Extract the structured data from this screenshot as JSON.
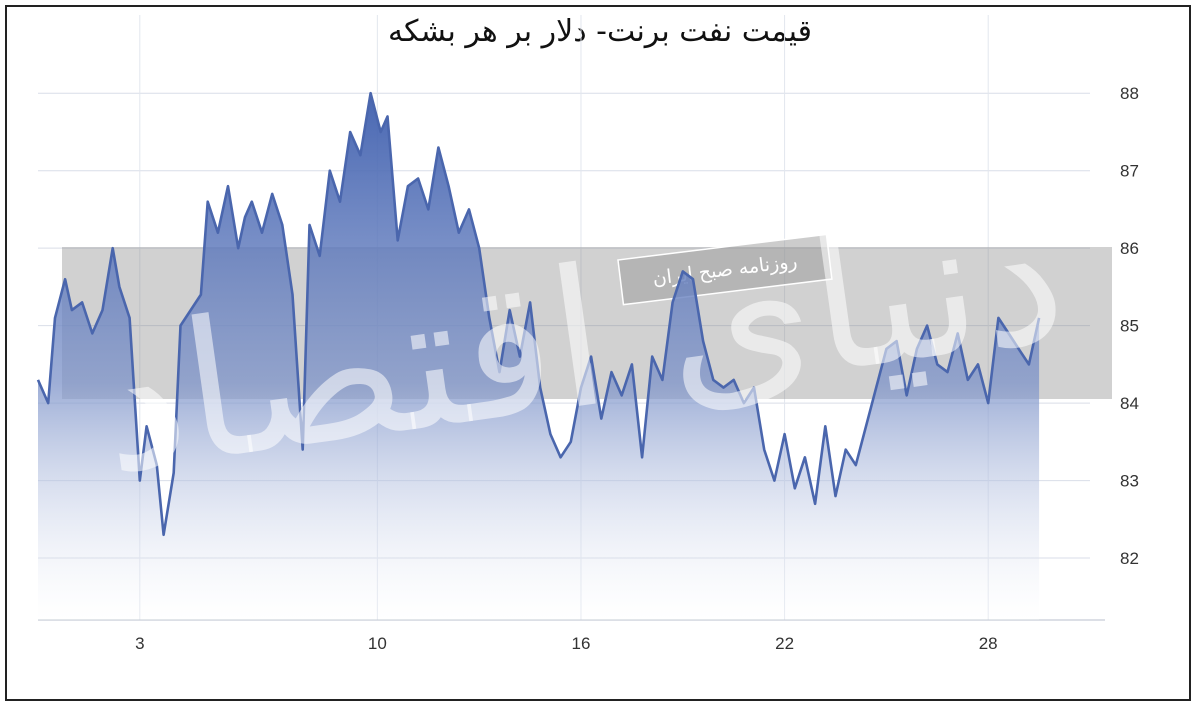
{
  "chart_data": {
    "type": "area",
    "title": "قیمت نفت برنت- دلار بر هر بشکه",
    "xlabel": "",
    "ylabel": "",
    "xlim": [
      0,
      31
    ],
    "ylim": [
      81.2,
      88.3
    ],
    "x_ticks": [
      3,
      10,
      16,
      22,
      28
    ],
    "y_ticks": [
      82,
      83,
      84,
      85,
      86,
      87,
      88
    ],
    "grid": true,
    "y_axis_side": "right",
    "line_color": "#4a66ad",
    "fill_color_top": "#3f5fae",
    "fill_color_bottom": "#ffffff",
    "series": [
      {
        "x": [
          0,
          0.3,
          0.5,
          0.8,
          1.0,
          1.3,
          1.6,
          1.9,
          2.2,
          2.4,
          2.7,
          3.0,
          3.2,
          3.5,
          3.7,
          4.0,
          4.2,
          4.5,
          4.8,
          5.0,
          5.3,
          5.6,
          5.9,
          6.1,
          6.3,
          6.6,
          6.9,
          7.2,
          7.5,
          7.8,
          8.0,
          8.3,
          8.6,
          8.9,
          9.2,
          9.5,
          9.8,
          10.1,
          10.3,
          10.6,
          10.9,
          11.2,
          11.5,
          11.8,
          12.1,
          12.4,
          12.7,
          13.0,
          13.3,
          13.6,
          13.9,
          14.2,
          14.5,
          14.8,
          15.1,
          15.4,
          15.7,
          16.0,
          16.3,
          16.6,
          16.9,
          17.2,
          17.5,
          17.8,
          18.1,
          18.4,
          18.7,
          19.0,
          19.3,
          19.6,
          19.9,
          20.2,
          20.5,
          20.8,
          21.1,
          21.4,
          21.7,
          22.0,
          22.3,
          22.6,
          22.9,
          23.2,
          23.5,
          23.8,
          24.1,
          24.4,
          24.7,
          25.0,
          25.3,
          25.6,
          25.9,
          26.2,
          26.5,
          26.8,
          27.1,
          27.4,
          27.7,
          28.0,
          28.3,
          28.6,
          28.9,
          29.2,
          29.5
        ],
        "values": [
          84.3,
          84.0,
          85.1,
          85.6,
          85.2,
          85.3,
          84.9,
          85.2,
          86.0,
          85.5,
          85.1,
          83.0,
          83.7,
          83.2,
          82.3,
          83.1,
          85.0,
          85.2,
          85.4,
          86.6,
          86.2,
          86.8,
          86.0,
          86.4,
          86.6,
          86.2,
          86.7,
          86.3,
          85.4,
          83.4,
          86.3,
          85.9,
          87.0,
          86.6,
          87.5,
          87.2,
          88.0,
          87.5,
          87.7,
          86.1,
          86.8,
          86.9,
          86.5,
          87.3,
          86.8,
          86.2,
          86.5,
          86.0,
          85.1,
          84.4,
          85.2,
          84.6,
          85.3,
          84.2,
          83.6,
          83.3,
          83.5,
          84.2,
          84.6,
          83.8,
          84.4,
          84.1,
          84.5,
          83.3,
          84.6,
          84.3,
          85.3,
          85.7,
          85.6,
          84.8,
          84.3,
          84.2,
          84.3,
          84.0,
          84.2,
          83.4,
          83.0,
          83.6,
          82.9,
          83.3,
          82.7,
          83.7,
          82.8,
          83.4,
          83.2,
          83.7,
          84.2,
          84.7,
          84.8,
          84.1,
          84.7,
          85.0,
          84.5,
          84.4,
          84.9,
          84.3,
          84.5,
          84.0,
          85.1,
          84.9,
          84.7,
          84.5,
          85.1
        ]
      }
    ]
  },
  "watermark": {
    "banner_text": "روزنامه صبح ایران",
    "big_text": "دنیای اقتصاد"
  }
}
